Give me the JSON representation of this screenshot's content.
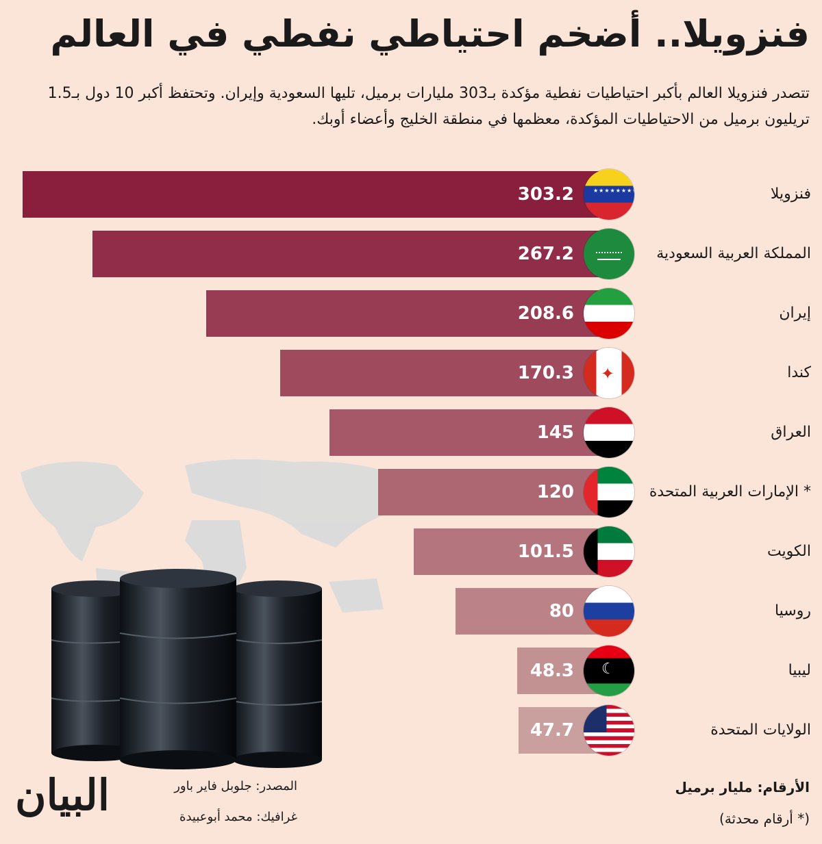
{
  "title": "فنزويلا.. أضخم احتياطي نفطي في العالم",
  "subtitle": "تتصدر فنزويلا العالم بأكبر احتياطيات نفطية مؤكدة بـ303 مليارات برميل، تليها السعودية وإيران. وتحتفظ أكبر 10 دول بـ1.5 تريليون برميل من الاحتياطيات المؤكدة، معظمها في منطقة الخليج وأعضاء أوبك.",
  "chart_data": {
    "type": "bar",
    "orientation": "horizontal",
    "categories": [
      "فنزويلا",
      "المملكة العربية السعودية",
      "إيران",
      "كندا",
      "العراق",
      "* الإمارات العربية المتحدة",
      "الكويت",
      "روسيا",
      "ليبيا",
      "الولايات المتحدة"
    ],
    "values": [
      303.2,
      267.2,
      208.6,
      170.3,
      145,
      120,
      101.5,
      80,
      48.3,
      47.7
    ],
    "value_labels": [
      "303.2",
      "267.2",
      "208.6",
      "170.3",
      "145",
      "120",
      "101.5",
      "80",
      "48.3",
      "47.7"
    ],
    "flags": [
      "venezuela-flag-icon",
      "saudi-flag-icon",
      "iran-flag-icon",
      "canada-flag-icon",
      "iraq-flag-icon",
      "uae-flag-icon",
      "kuwait-flag-icon",
      "russia-flag-icon",
      "libya-flag-icon",
      "usa-flag-icon"
    ],
    "colors": {
      "start": "#8a1f3d",
      "end": "#c9a09e"
    },
    "grid": false
  },
  "footer": {
    "unit": "الأرقام: مليار برميل",
    "note": "(* أرقام محدثة)",
    "source": "المصدر: جلوبل فاير باور",
    "graphics": "غرافيك: محمد أبوعبيدة",
    "logo": "البيان"
  }
}
